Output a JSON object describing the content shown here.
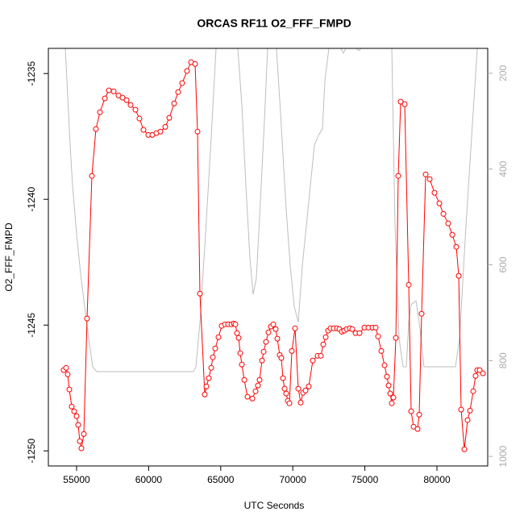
{
  "chart_data": {
    "type": "line",
    "title": "ORCAS RF11 O2_FFF_FMPD",
    "xlabel": "UTC Seconds",
    "ylabel": "O2_FFF_FMPD",
    "xlim": [
      53043,
      83523
    ],
    "ylim": [
      -1250.6,
      -1234.0
    ],
    "y2lim": [
      1020,
      148
    ],
    "xticks": [
      55000,
      60000,
      65000,
      70000,
      75000,
      80000
    ],
    "yticks": [
      -1250,
      -1245,
      -1240,
      -1235
    ],
    "y2ticks": [
      200,
      400,
      600,
      800,
      1000
    ],
    "series": [
      {
        "color": "#ff0000",
        "marker": "open-circle",
        "x": [
          54105,
          54273,
          54385,
          54497,
          54664,
          54832,
          55000,
          55112,
          55224,
          55336,
          55503,
          55727,
          56063,
          56342,
          56622,
          56958,
          57237,
          57573,
          57908,
          58188,
          58468,
          58747,
          59083,
          59363,
          59642,
          59978,
          60257,
          60537,
          60817,
          61152,
          61432,
          61768,
          62047,
          62327,
          62662,
          62942,
          63222,
          63390,
          63557,
          63893,
          64005,
          64173,
          64340,
          64452,
          64620,
          64844,
          65067,
          65291,
          65515,
          65739,
          65906,
          66018,
          66130,
          66242,
          66354,
          66466,
          66633,
          66857,
          67193,
          67417,
          67584,
          67696,
          67864,
          67976,
          68144,
          68311,
          68479,
          68647,
          68815,
          68927,
          69094,
          69206,
          69318,
          69430,
          69542,
          69654,
          69766,
          69934,
          70158,
          70381,
          70549,
          70717,
          70884,
          71108,
          71388,
          71723,
          71947,
          72115,
          72282,
          72450,
          72618,
          72842,
          73065,
          73233,
          73401,
          73569,
          73737,
          73960,
          74128,
          74352,
          74632,
          74967,
          75247,
          75526,
          75750,
          75918,
          76141,
          76365,
          76533,
          76645,
          76757,
          76869,
          76980,
          77148,
          77316,
          77484,
          77764,
          78043,
          78211,
          78379,
          78658,
          78770,
          78938,
          79217,
          79497,
          79833,
          80168,
          80448,
          80783,
          81063,
          81343,
          81511,
          81678,
          81902,
          82126,
          82294,
          82517,
          82685,
          82797,
          82965,
          83189
        ],
        "values": [
          -1246.79,
          -1246.7,
          -1246.96,
          -1247.56,
          -1248.24,
          -1248.43,
          -1248.62,
          -1248.97,
          -1249.62,
          -1249.9,
          -1249.33,
          -1244.74,
          -1239.07,
          -1237.21,
          -1236.54,
          -1235.99,
          -1235.67,
          -1235.71,
          -1235.87,
          -1235.96,
          -1236.06,
          -1236.25,
          -1236.44,
          -1236.79,
          -1237.24,
          -1237.44,
          -1237.44,
          -1237.37,
          -1237.31,
          -1237.12,
          -1236.76,
          -1236.19,
          -1235.74,
          -1235.38,
          -1234.9,
          -1234.55,
          -1234.62,
          -1237.31,
          -1243.75,
          -1247.76,
          -1247.44,
          -1247.11,
          -1246.7,
          -1246.28,
          -1245.93,
          -1245.48,
          -1245.03,
          -1244.97,
          -1244.97,
          -1244.97,
          -1244.94,
          -1244.97,
          -1245.32,
          -1245.51,
          -1246.12,
          -1246.57,
          -1247.18,
          -1247.85,
          -1247.92,
          -1247.63,
          -1247.4,
          -1247.18,
          -1246.41,
          -1246.06,
          -1245.67,
          -1245.29,
          -1245.06,
          -1244.97,
          -1245.16,
          -1245.54,
          -1246.19,
          -1246.31,
          -1247.11,
          -1247.53,
          -1247.72,
          -1248.01,
          -1248.11,
          -1246.03,
          -1245.13,
          -1247.53,
          -1248.08,
          -1247.69,
          -1247.6,
          -1247.44,
          -1246.41,
          -1246.22,
          -1246.22,
          -1245.77,
          -1245.48,
          -1245.22,
          -1245.13,
          -1245.13,
          -1245.13,
          -1245.16,
          -1245.26,
          -1245.22,
          -1245.16,
          -1245.13,
          -1245.16,
          -1245.32,
          -1245.32,
          -1245.1,
          -1245.1,
          -1245.1,
          -1245.1,
          -1245.45,
          -1246.03,
          -1246.6,
          -1247.05,
          -1247.4,
          -1247.72,
          -1248.11,
          -1247.88,
          -1245.51,
          -1239.07,
          -1236.12,
          -1236.22,
          -1243.4,
          -1248.43,
          -1249.04,
          -1249.13,
          -1248.56,
          -1244.55,
          -1239.01,
          -1239.2,
          -1239.74,
          -1240.16,
          -1240.58,
          -1240.96,
          -1241.41,
          -1241.89,
          -1243.04,
          -1248.36,
          -1249.94,
          -1248.78,
          -1248.4,
          -1247.63,
          -1247.02,
          -1246.79,
          -1246.79,
          -1246.92
        ]
      },
      {
        "color": "#bebebe",
        "axis": "y2",
        "x": [
          54217,
          54553,
          54720,
          55000,
          55280,
          55559,
          55839,
          56119,
          56398,
          63110,
          63278,
          63557,
          63949,
          64340,
          64676,
          66186,
          66466,
          66745,
          67025,
          67249,
          67472,
          67696,
          68032,
          68255,
          68871,
          69150,
          69542,
          69822,
          70101,
          70381,
          70661,
          71108,
          71500,
          71779,
          72059,
          72227,
          72506,
          73345,
          73513,
          73681,
          74408,
          74576,
          74743,
          76869,
          77092,
          77372,
          77652,
          77876,
          78043,
          78211,
          78547,
          78770,
          79105,
          81287,
          81567,
          82014,
          82405,
          82797
        ],
        "values": [
          148,
          350,
          434,
          535,
          619,
          687,
          754,
          813,
          823,
          823,
          813,
          720,
          535,
          333,
          148,
          148,
          266,
          434,
          586,
          662,
          628,
          501,
          299,
          148,
          148,
          283,
          485,
          602,
          687,
          720,
          602,
          468,
          350,
          330,
          316,
          215,
          148,
          148,
          158,
          148,
          148,
          153,
          148,
          148,
          518,
          754,
          813,
          813,
          720,
          683,
          675,
          720,
          813,
          813,
          754,
          518,
          333,
          148
        ]
      }
    ]
  }
}
